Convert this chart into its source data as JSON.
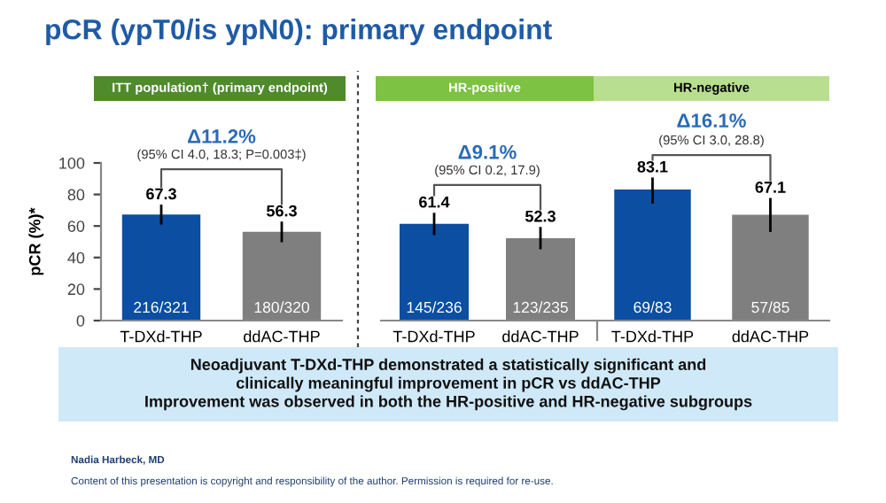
{
  "chart_data": [
    {
      "type": "bar",
      "title": "pCR (ypT0/is ypN0): primary endpoint",
      "subtitle": "ITT population† (primary endpoint)",
      "ylabel": "pCR (%)*",
      "categories": [
        "T-DXd-THP",
        "ddAC-THP"
      ],
      "values": [
        67.3,
        56.3
      ],
      "colors": [
        "#0b4ea2",
        "#7f7f7f"
      ],
      "errors": [
        [
          61.7,
          72.8
        ],
        [
          50.5,
          62.0
        ]
      ],
      "data_labels": true,
      "ylim": [
        0,
        100
      ],
      "yticks": [
        0,
        20,
        40,
        60,
        80,
        100
      ],
      "annotations": [
        {
          "text": "216/321",
          "x": "T-DXd-THP",
          "y": 0
        },
        {
          "text": "180/320",
          "x": "ddAC-THP",
          "y": 0
        },
        "Δ11.2%",
        "(95% CI 4.0, 18.3; P=0.003‡)",
        "Neoadjuvant T-DXd-THP demonstrated a statistically significant and\nclinically meaningful improvement in pCR vs ddAC-THP\nImprovement was observed in both the HR-positive and HR-negative subgroups",
        "Nadia Harbeck, MD",
        "Content of this presentation is copyright and responsibility of the author. Permission is required for re-use."
      ]
    },
    {
      "type": "bar",
      "subtitle": "HR-positive",
      "tick_labels": "x",
      "categories": [
        "T-DXd-THP",
        "ddAC-THP"
      ],
      "values": [
        61.4,
        52.3
      ],
      "colors": [
        "#0b4ea2",
        "#7f7f7f"
      ],
      "errors": [
        [
          55.0,
          67.6
        ],
        [
          46.0,
          58.6
        ]
      ],
      "data_labels": true,
      "ylim": [
        0,
        100
      ],
      "annotations": [
        {
          "text": "145/236",
          "x": "T-DXd-THP",
          "y": 0
        },
        {
          "text": "123/235",
          "x": "ddAC-THP",
          "y": 0
        },
        "Δ9.1%",
        "(95% CI 0.2, 17.9)"
      ]
    },
    {
      "type": "bar",
      "subtitle": "HR-negative",
      "tick_labels": "x",
      "categories": [
        "T-DXd-THP",
        "ddAC-THP"
      ],
      "values": [
        83.1,
        67.1
      ],
      "colors": [
        "#0b4ea2",
        "#7f7f7f"
      ],
      "errors": [
        [
          75.0,
          90.0
        ],
        [
          57.0,
          77.0
        ]
      ],
      "data_labels": true,
      "ylim": [
        0,
        100
      ],
      "annotations": [
        {
          "text": "69/83",
          "x": "T-DXd-THP",
          "y": 0
        },
        {
          "text": "57/85",
          "x": "ddAC-THP",
          "y": 0
        },
        "Δ16.1%",
        "(95% CI 3.0, 28.8)"
      ]
    }
  ]
}
